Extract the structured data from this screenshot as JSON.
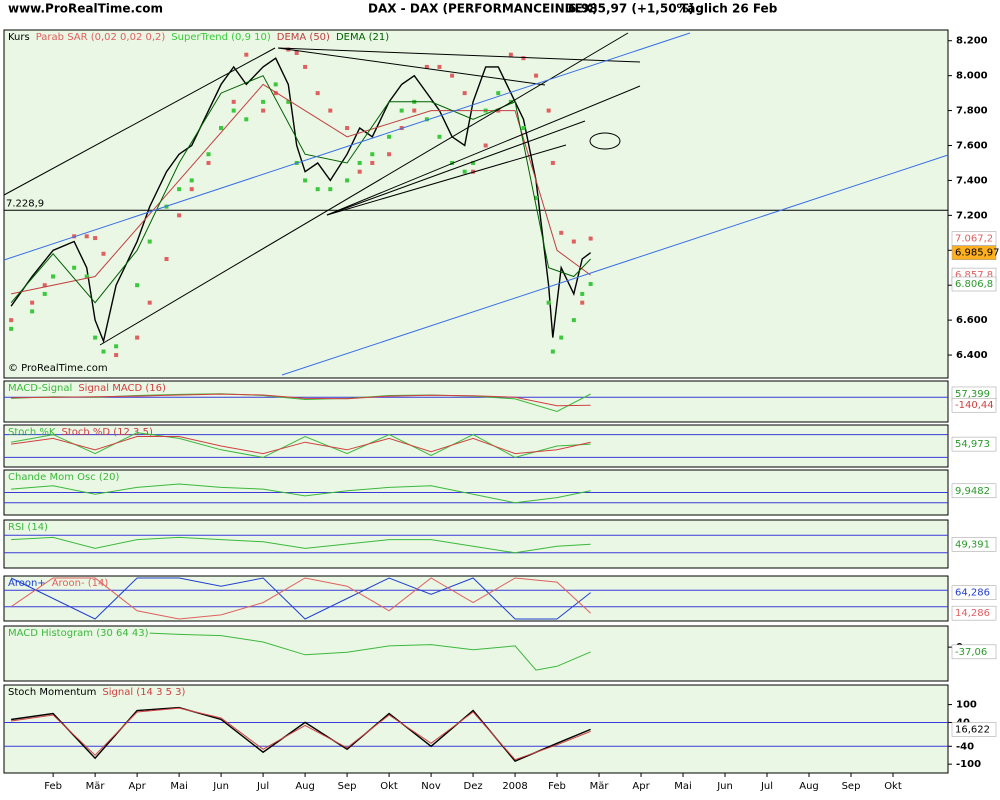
{
  "header": {
    "site": "www.ProRealTime.com",
    "instrument": "DAX - DAX (PERFORMANCEINDEX)",
    "quote": "6.985,97 (+1,50%)",
    "period": "Täglich  26 Feb"
  },
  "copyright": "© ProRealTime.com",
  "chart_data": [
    {
      "type": "line",
      "x": [
        0,
        0.5,
        0.8,
        1.0,
        1.5,
        1.8,
        2.0,
        2.2,
        2.5,
        3.0,
        3.3,
        3.7,
        4.0,
        4.3,
        4.7,
        5.0,
        5.3,
        5.6,
        6.0,
        6.3,
        6.6,
        6.8,
        7.0,
        7.3,
        7.6,
        8.0,
        8.3,
        8.6,
        9.0,
        9.3,
        9.6,
        9.9,
        10.2,
        10.5,
        10.8,
        11.0,
        11.3,
        11.6,
        11.9,
        12.2,
        12.5,
        12.8,
        12.9,
        13.1,
        13.4,
        13.6,
        13.8
      ],
      "series": [
        {
          "name": "Kurs",
          "color": "#000000",
          "style": "line",
          "values": [
            6680,
            6850,
            6940,
            7000,
            7050,
            6900,
            6600,
            6480,
            6800,
            7050,
            7250,
            7450,
            7550,
            7600,
            7800,
            7950,
            8050,
            7950,
            8050,
            8100,
            7950,
            7600,
            7450,
            7500,
            7400,
            7550,
            7700,
            7650,
            7850,
            7950,
            8000,
            7900,
            7800,
            7650,
            7600,
            7850,
            8050,
            8050,
            7900,
            7750,
            7400,
            6800,
            6500,
            6900,
            6750,
            6950,
            6985.97
          ]
        },
        {
          "name": "Parab SAR (0,02 0,02 0,2)",
          "color": "#e06060",
          "style": "dots",
          "values": [
            6600,
            6700,
            6800,
            6850,
            7080,
            7080,
            7070,
            6980,
            6400,
            6500,
            6700,
            6950,
            7200,
            7350,
            7500,
            7700,
            7850,
            8120,
            7800,
            7900,
            8150,
            8130,
            8050,
            7900,
            7800,
            7700,
            7450,
            7500,
            7550,
            7700,
            7800,
            8050,
            8050,
            8000,
            7900,
            7450,
            7600,
            7800,
            8120,
            8100,
            8000,
            7800,
            7500,
            7100,
            7050,
            6700,
            7067.2
          ]
        },
        {
          "name": "SuperTrend (0,9 10)",
          "color": "#3cc83c",
          "style": "dots",
          "values": [
            6550,
            6650,
            6750,
            6850,
            6900,
            6850,
            6500,
            6420,
            6450,
            6800,
            7050,
            7250,
            7350,
            7400,
            7550,
            7700,
            7800,
            7750,
            7850,
            7950,
            7850,
            7500,
            7400,
            7350,
            7350,
            7400,
            7500,
            7550,
            7650,
            7800,
            7850,
            7750,
            7650,
            7500,
            7450,
            7500,
            7800,
            7900,
            7850,
            7700,
            7300,
            6700,
            6420,
            6500,
            6600,
            6750,
            6806.8
          ]
        },
        {
          "name": "DEMA (50)",
          "color": "#c04040",
          "style": "line",
          "x": [
            0,
            2,
            4,
            6,
            8,
            10,
            12,
            13,
            13.8
          ],
          "values": [
            6750,
            6850,
            7400,
            7950,
            7650,
            7800,
            7800,
            7000,
            6857.8
          ]
        },
        {
          "name": "DEMA (21)",
          "color": "#006000",
          "style": "line",
          "x": [
            0,
            1,
            2,
            3,
            4,
            5,
            6,
            7,
            8,
            9,
            10,
            11,
            12,
            12.8,
            13.4,
            13.8
          ],
          "values": [
            6700,
            6980,
            6700,
            7000,
            7500,
            7900,
            8000,
            7550,
            7500,
            7850,
            7850,
            7750,
            7850,
            6900,
            6850,
            6950
          ]
        }
      ],
      "ylim": [
        6280,
        8250
      ],
      "yticks": [
        {
          "value": 6400,
          "label": "6.400"
        },
        {
          "value": 6600,
          "label": "6.600"
        },
        {
          "value": 6800,
          "label": "6.800"
        },
        {
          "value": 7000,
          "label": "7.000"
        },
        {
          "value": 7200,
          "label": "7.200"
        },
        {
          "value": 7400,
          "label": "7.400"
        },
        {
          "value": 7600,
          "label": "7.600"
        },
        {
          "value": 7800,
          "label": "7.800"
        },
        {
          "value": 8000,
          "label": "8.000"
        },
        {
          "value": 8200,
          "label": "8.200"
        }
      ],
      "hline": {
        "value": 7228.9,
        "label": "7.228,9"
      },
      "price_labels": [
        {
          "value": 7067.2,
          "label": "7.067,2",
          "color": "#e06060",
          "bg": "#ffffff"
        },
        {
          "value": 6985.97,
          "label": "6.985,97",
          "color": "#000000",
          "bg": "#ffb020"
        },
        {
          "value": 6857.8,
          "label": "6.857,8",
          "color": "#e06060",
          "bg": "#ffffff"
        },
        {
          "value": 6806.8,
          "label": "6.806,8",
          "color": "#2a9a2a",
          "bg": "#ffffff"
        }
      ]
    },
    {
      "type": "line",
      "x": [
        0,
        1,
        2,
        3,
        4,
        5,
        6,
        7,
        8,
        9,
        10,
        11,
        12,
        13,
        13.8
      ],
      "series": [
        {
          "name": "MACD-Signal",
          "color": "#3cb83c",
          "style": "line",
          "values": [
            -20,
            10,
            0,
            30,
            50,
            60,
            30,
            -40,
            -20,
            30,
            40,
            20,
            -30,
            -250,
            57.399
          ]
        },
        {
          "name": "Signal MACD (16)",
          "color": "#d04040",
          "style": "line",
          "values": [
            -10,
            0,
            10,
            20,
            40,
            55,
            40,
            -20,
            -25,
            20,
            35,
            25,
            0,
            -150,
            -140.44
          ]
        }
      ],
      "ylim": [
        -400,
        250
      ],
      "hlines": [
        0
      ],
      "price_labels": [
        {
          "value": 57.399,
          "label": "57,399",
          "color": "#2a9a2a",
          "bg": "#ffffff"
        },
        {
          "value": -140.44,
          "label": "-140,44",
          "color": "#d04040",
          "bg": "#ffffff"
        }
      ]
    },
    {
      "type": "line",
      "x": [
        0,
        1,
        2,
        3,
        4,
        5,
        6,
        7,
        8,
        9,
        10,
        11,
        12,
        13,
        13.8
      ],
      "series": [
        {
          "name": "Stoch %K",
          "color": "#3cb83c",
          "style": "line",
          "values": [
            60,
            80,
            30,
            85,
            70,
            40,
            20,
            75,
            30,
            80,
            25,
            80,
            20,
            50,
            54.973
          ]
        },
        {
          "name": "Stoch %D (12 3 5)",
          "color": "#d04040",
          "style": "line",
          "values": [
            55,
            70,
            40,
            75,
            75,
            50,
            30,
            60,
            40,
            70,
            35,
            70,
            30,
            40,
            60
          ]
        }
      ],
      "ylim": [
        0,
        100
      ],
      "hlines": [
        20,
        80
      ],
      "price_labels": [
        {
          "value": 54.973,
          "label": "54,973",
          "color": "#2a9a2a",
          "bg": "#ffffff"
        }
      ]
    },
    {
      "type": "line",
      "x": [
        0,
        1,
        2,
        3,
        4,
        5,
        6,
        7,
        8,
        9,
        10,
        11,
        12,
        13,
        13.8
      ],
      "series": [
        {
          "name": "Chande Mom Osc (20)",
          "color": "#3cb83c",
          "style": "line",
          "values": [
            20,
            40,
            -10,
            30,
            50,
            30,
            20,
            -20,
            10,
            30,
            40,
            -10,
            -60,
            -30,
            9.9482
          ]
        }
      ],
      "ylim": [
        -120,
        120
      ],
      "hlines": [
        0,
        -60
      ],
      "price_labels": [
        {
          "value": 9.9482,
          "label": "9,9482",
          "color": "#2a9a2a",
          "bg": "#ffffff"
        }
      ]
    },
    {
      "type": "line",
      "x": [
        0,
        1,
        2,
        3,
        4,
        5,
        6,
        7,
        8,
        9,
        10,
        11,
        12,
        13,
        13.8
      ],
      "series": [
        {
          "name": "RSI (14)",
          "color": "#3cb83c",
          "style": "line",
          "values": [
            60,
            65,
            40,
            60,
            65,
            60,
            55,
            40,
            50,
            60,
            60,
            45,
            30,
            45,
            49.391
          ]
        }
      ],
      "ylim": [
        0,
        100
      ],
      "hlines": [
        30,
        70
      ],
      "price_labels": [
        {
          "value": 49.391,
          "label": "49,391",
          "color": "#2a9a2a",
          "bg": "#ffffff"
        }
      ]
    },
    {
      "type": "line",
      "x": [
        0,
        1,
        2,
        3,
        4,
        5,
        6,
        7,
        8,
        9,
        10,
        11,
        12,
        13,
        13.8
      ],
      "series": [
        {
          "name": "Aroon+",
          "color": "#2040d0",
          "style": "line",
          "values": [
            100,
            50,
            0,
            100,
            100,
            80,
            100,
            0,
            50,
            100,
            60,
            100,
            0,
            0,
            64.286
          ]
        },
        {
          "name": "Aroon- (14)",
          "color": "#e06060",
          "style": "line",
          "values": [
            30,
            100,
            100,
            20,
            0,
            10,
            40,
            100,
            80,
            20,
            100,
            40,
            100,
            90,
            14.286
          ]
        }
      ],
      "ylim": [
        0,
        100
      ],
      "hlines": [
        30,
        70
      ],
      "price_labels": [
        {
          "value": 64.286,
          "label": "64,286",
          "color": "#2040d0",
          "bg": "#ffffff"
        },
        {
          "value": 14.286,
          "label": "14,286",
          "color": "#e06060",
          "bg": "#ffffff"
        }
      ]
    },
    {
      "type": "line",
      "x": [
        3.3,
        4,
        5,
        6,
        7,
        8,
        9,
        10,
        11,
        12,
        12.5,
        13,
        13.8
      ],
      "series": [
        {
          "name": "MACD Histogram (30 64 43)",
          "color": "#3cb83c",
          "style": "line",
          "values": [
            110,
            100,
            90,
            40,
            -60,
            -40,
            10,
            20,
            -20,
            10,
            -180,
            -150,
            -37.06
          ]
        }
      ],
      "ylim": [
        -250,
        150
      ],
      "yticks": [
        0
      ],
      "price_labels": [
        {
          "value": -37.06,
          "label": "-37,06",
          "color": "#2a9a2a",
          "bg": "#ffffff"
        }
      ]
    },
    {
      "type": "line",
      "x": [
        0,
        1,
        2,
        3,
        4,
        5,
        6,
        7,
        8,
        9,
        10,
        11,
        12,
        13,
        13.8
      ],
      "series": [
        {
          "name": "Stoch Momentum",
          "color": "#000000",
          "style": "line",
          "values": [
            50,
            70,
            -80,
            80,
            90,
            50,
            -60,
            40,
            -50,
            70,
            -40,
            80,
            -90,
            -30,
            16.622
          ]
        },
        {
          "name": "Signal (14 3 5 3)",
          "color": "#d04040",
          "style": "line",
          "values": [
            45,
            65,
            -70,
            75,
            88,
            55,
            -50,
            30,
            -45,
            65,
            -30,
            75,
            -85,
            -35,
            10
          ]
        }
      ],
      "ylim": [
        -123,
        159
      ],
      "yticks": [
        -100,
        -40,
        40,
        100
      ],
      "hlines": [
        -40,
        40
      ],
      "price_labels": [
        {
          "value": 16.622,
          "label": "16,622",
          "color": "#000000",
          "bg": "#ffffff"
        }
      ],
      "xlim": [
        -0.17,
        22.31
      ],
      "xticks": [
        {
          "value": 1,
          "label": "Feb"
        },
        {
          "value": 2,
          "label": "Mär"
        },
        {
          "value": 3,
          "label": "Apr"
        },
        {
          "value": 4,
          "label": "Mai"
        },
        {
          "value": 5,
          "label": "Jun"
        },
        {
          "value": 6,
          "label": "Jul"
        },
        {
          "value": 7,
          "label": "Aug"
        },
        {
          "value": 8,
          "label": "Sep"
        },
        {
          "value": 9,
          "label": "Okt"
        },
        {
          "value": 10,
          "label": "Nov"
        },
        {
          "value": 11,
          "label": "Dez"
        },
        {
          "value": 12,
          "label": "2008"
        },
        {
          "value": 13,
          "label": "Feb"
        },
        {
          "value": 14,
          "label": "Mär"
        },
        {
          "value": 15,
          "label": "Apr"
        },
        {
          "value": 16,
          "label": "Mai"
        },
        {
          "value": 17,
          "label": "Jun"
        },
        {
          "value": 18,
          "label": "Jul"
        },
        {
          "value": 19,
          "label": "Aug"
        },
        {
          "value": 20,
          "label": "Sep"
        },
        {
          "value": 21,
          "label": "Okt"
        }
      ]
    }
  ]
}
